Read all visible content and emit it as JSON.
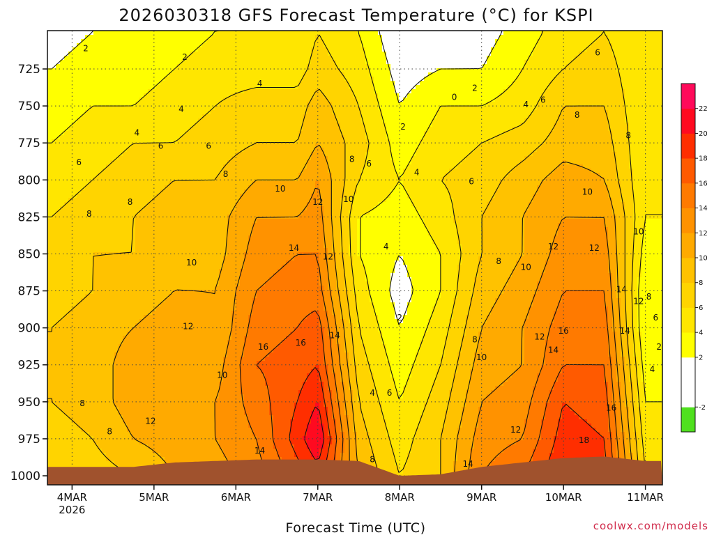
{
  "chart_data": {
    "type": "heatmap",
    "title": "2026030318 GFS Forecast Temperature (°C) for KSPI",
    "xlabel": "Forecast Time (UTC)",
    "ylabel": "",
    "credit": "coolwx.com/models",
    "y_ticks": [
      725,
      750,
      775,
      800,
      825,
      850,
      875,
      900,
      925,
      950,
      975,
      1000
    ],
    "ylim": [
      1000,
      700
    ],
    "x_ticks": [
      {
        "label": "4MAR",
        "sublabel": "2026",
        "hours": 6
      },
      {
        "label": "5MAR",
        "sublabel": "",
        "hours": 30
      },
      {
        "label": "6MAR",
        "sublabel": "",
        "hours": 54
      },
      {
        "label": "7MAR",
        "sublabel": "",
        "hours": 78
      },
      {
        "label": "8MAR",
        "sublabel": "",
        "hours": 102
      },
      {
        "label": "9MAR",
        "sublabel": "",
        "hours": 126
      },
      {
        "label": "10MAR",
        "sublabel": "",
        "hours": 150
      },
      {
        "label": "11MAR",
        "sublabel": "",
        "hours": 174
      }
    ],
    "xlim": [
      0,
      180
    ],
    "colorbar": {
      "labels": [
        "-2",
        "2",
        "4",
        "6",
        "8",
        "10",
        "12",
        "14",
        "16",
        "18",
        "20",
        "22"
      ],
      "levels": [
        -4,
        -2,
        0,
        2,
        4,
        6,
        8,
        10,
        12,
        14,
        16,
        18,
        20,
        22,
        24
      ],
      "colors": [
        "#4fe01e",
        "#ffffff",
        "#ffffff",
        "#ffff00",
        "#ffe600",
        "#ffd400",
        "#ffc200",
        "#ffaa00",
        "#ff9200",
        "#ff7a00",
        "#ff5a00",
        "#ff2e00",
        "#ff0a20",
        "#ff0a5a"
      ]
    },
    "profiles": [
      {
        "hours": 0,
        "surface_hpa": 994,
        "levels": [
          1000,
          975,
          950,
          925,
          900,
          875,
          850,
          825,
          800,
          775,
          750,
          725,
          700
        ],
        "temps": [
          6,
          7,
          8,
          8,
          8,
          7,
          7,
          6,
          5,
          4,
          3,
          2,
          1
        ]
      },
      {
        "hours": 12,
        "surface_hpa": 994,
        "levels": [
          1000,
          975,
          950,
          925,
          900,
          875,
          850,
          825,
          800,
          775,
          750,
          725,
          700
        ],
        "temps": [
          7,
          8,
          9,
          9,
          9,
          8,
          8,
          7,
          6,
          5,
          4,
          3,
          2
        ]
      },
      {
        "hours": 24,
        "surface_hpa": 994,
        "levels": [
          1000,
          975,
          950,
          925,
          900,
          875,
          850,
          825,
          800,
          775,
          750,
          725,
          700
        ],
        "temps": [
          8,
          10,
          11,
          11,
          10,
          9,
          8,
          8,
          7,
          6,
          4,
          3,
          2
        ]
      },
      {
        "hours": 36,
        "surface_hpa": 991,
        "levels": [
          1000,
          975,
          950,
          925,
          900,
          875,
          850,
          825,
          800,
          775,
          750,
          725,
          700
        ],
        "temps": [
          10,
          11,
          12,
          12,
          11,
          10,
          10,
          9,
          8,
          6,
          5,
          4,
          3
        ]
      },
      {
        "hours": 48,
        "surface_hpa": 990,
        "levels": [
          1000,
          975,
          950,
          925,
          900,
          875,
          850,
          825,
          800,
          775,
          750,
          725,
          700
        ],
        "temps": [
          11,
          12,
          12,
          11,
          10,
          10,
          9,
          9,
          8,
          7,
          6,
          5,
          4
        ]
      },
      {
        "hours": 60,
        "surface_hpa": 989,
        "levels": [
          1000,
          975,
          950,
          925,
          900,
          875,
          850,
          825,
          800,
          775,
          750,
          725,
          700
        ],
        "temps": [
          13,
          14,
          15,
          16,
          15,
          14,
          13,
          12,
          10,
          8,
          7,
          5,
          4
        ]
      },
      {
        "hours": 72,
        "surface_hpa": 989,
        "levels": [
          1000,
          975,
          950,
          925,
          900,
          875,
          850,
          825,
          800,
          775,
          750,
          725,
          700
        ],
        "temps": [
          17,
          19,
          18,
          17,
          16,
          15,
          14,
          12,
          10,
          8,
          7,
          5,
          4
        ]
      },
      {
        "hours": 78,
        "surface_hpa": 989,
        "levels": [
          1000,
          975,
          950,
          925,
          900,
          875,
          850,
          825,
          800,
          775,
          750,
          725,
          700
        ],
        "temps": [
          19,
          22,
          20,
          18,
          17,
          15,
          14,
          13,
          12,
          10,
          9,
          7,
          6
        ]
      },
      {
        "hours": 90,
        "surface_hpa": 990,
        "levels": [
          1000,
          975,
          950,
          925,
          900,
          875,
          850,
          825,
          800,
          775,
          750,
          725,
          700
        ],
        "temps": [
          10,
          9,
          8,
          7,
          6,
          5,
          4,
          4,
          6,
          7,
          6,
          5,
          4
        ]
      },
      {
        "hours": 102,
        "surface_hpa": 1000,
        "levels": [
          1000,
          975,
          950,
          925,
          900,
          875,
          850,
          825,
          800,
          775,
          750,
          725,
          700
        ],
        "temps": [
          6,
          5,
          4,
          3,
          2,
          1,
          2,
          3,
          4,
          3,
          2,
          1,
          0
        ]
      },
      {
        "hours": 114,
        "surface_hpa": 999,
        "levels": [
          1000,
          975,
          950,
          925,
          900,
          875,
          850,
          825,
          800,
          775,
          750,
          725,
          700
        ],
        "temps": [
          8,
          8,
          7,
          6,
          5,
          4,
          4,
          5,
          6,
          5,
          4,
          2,
          0
        ]
      },
      {
        "hours": 126,
        "surface_hpa": 994,
        "levels": [
          1000,
          975,
          950,
          925,
          900,
          875,
          850,
          825,
          800,
          775,
          750,
          725,
          700
        ],
        "temps": [
          14,
          13,
          12,
          11,
          10,
          9,
          8,
          8,
          7,
          6,
          4,
          2,
          1
        ]
      },
      {
        "hours": 138,
        "surface_hpa": 991,
        "levels": [
          1000,
          975,
          950,
          925,
          900,
          875,
          850,
          825,
          800,
          775,
          750,
          725,
          700
        ],
        "temps": [
          16,
          14,
          13,
          12,
          12,
          11,
          10,
          10,
          9,
          7,
          5,
          4,
          3
        ]
      },
      {
        "hours": 150,
        "surface_hpa": 988,
        "levels": [
          1000,
          975,
          950,
          925,
          900,
          875,
          850,
          825,
          800,
          775,
          750,
          725,
          700
        ],
        "temps": [
          20,
          19,
          18,
          16,
          15,
          14,
          13,
          12,
          11,
          9,
          8,
          6,
          5
        ]
      },
      {
        "hours": 162,
        "surface_hpa": 987,
        "levels": [
          1000,
          975,
          950,
          925,
          900,
          875,
          850,
          825,
          800,
          775,
          750,
          725,
          700
        ],
        "temps": [
          19,
          18,
          17,
          16,
          15,
          14,
          13,
          12,
          10,
          9,
          8,
          7,
          6
        ]
      },
      {
        "hours": 174,
        "surface_hpa": 990,
        "levels": [
          1000,
          975,
          950,
          925,
          900,
          875,
          850,
          825,
          800,
          775,
          750,
          725,
          700
        ],
        "temps": [
          6,
          5,
          4,
          3,
          2,
          2,
          3,
          4,
          4,
          4,
          4,
          4,
          4
        ]
      }
    ],
    "contour_labels": [
      {
        "text": "2",
        "hours": 10,
        "hpa": 711
      },
      {
        "text": "2",
        "hours": 39,
        "hpa": 717
      },
      {
        "text": "4",
        "hours": 61,
        "hpa": 735
      },
      {
        "text": "4",
        "hours": 38,
        "hpa": 752
      },
      {
        "text": "4",
        "hours": 25,
        "hpa": 768
      },
      {
        "text": "6",
        "hours": 8,
        "hpa": 788
      },
      {
        "text": "6",
        "hours": 32,
        "hpa": 777
      },
      {
        "text": "6",
        "hours": 46,
        "hpa": 777
      },
      {
        "text": "8",
        "hours": 11,
        "hpa": 823
      },
      {
        "text": "8",
        "hours": 23,
        "hpa": 815
      },
      {
        "text": "8",
        "hours": 51,
        "hpa": 796
      },
      {
        "text": "10",
        "hours": 41,
        "hpa": 856
      },
      {
        "text": "10",
        "hours": 67,
        "hpa": 806
      },
      {
        "text": "12",
        "hours": 40,
        "hpa": 899
      },
      {
        "text": "12",
        "hours": 78,
        "hpa": 815
      },
      {
        "text": "14",
        "hours": 71,
        "hpa": 846
      },
      {
        "text": "12",
        "hours": 81,
        "hpa": 852
      },
      {
        "text": "8",
        "hours": 88,
        "hpa": 786
      },
      {
        "text": "10",
        "hours": 87,
        "hpa": 813
      },
      {
        "text": "6",
        "hours": 93,
        "hpa": 789
      },
      {
        "text": "4",
        "hours": 98,
        "hpa": 845
      },
      {
        "text": "2",
        "hours": 102,
        "hpa": 893
      },
      {
        "text": "4",
        "hours": 107,
        "hpa": 795
      },
      {
        "text": "2",
        "hours": 103,
        "hpa": 764
      },
      {
        "text": "16",
        "hours": 62,
        "hpa": 913
      },
      {
        "text": "16",
        "hours": 73,
        "hpa": 910
      },
      {
        "text": "14",
        "hours": 83,
        "hpa": 905
      },
      {
        "text": "10",
        "hours": 50,
        "hpa": 932
      },
      {
        "text": "12",
        "hours": 29,
        "hpa": 963
      },
      {
        "text": "8",
        "hours": 9,
        "hpa": 951
      },
      {
        "text": "8",
        "hours": 17,
        "hpa": 970
      },
      {
        "text": "14",
        "hours": 61,
        "hpa": 983
      },
      {
        "text": "4",
        "hours": 94,
        "hpa": 944
      },
      {
        "text": "6",
        "hours": 99,
        "hpa": 944
      },
      {
        "text": "8",
        "hours": 94,
        "hpa": 989
      },
      {
        "text": "0",
        "hours": 118,
        "hpa": 744
      },
      {
        "text": "2",
        "hours": 124,
        "hpa": 738
      },
      {
        "text": "4",
        "hours": 139,
        "hpa": 749
      },
      {
        "text": "6",
        "hours": 144,
        "hpa": 746
      },
      {
        "text": "8",
        "hours": 154,
        "hpa": 756
      },
      {
        "text": "6",
        "hours": 160,
        "hpa": 714
      },
      {
        "text": "8",
        "hours": 169,
        "hpa": 770
      },
      {
        "text": "4",
        "hours": 179,
        "hpa": 746
      },
      {
        "text": "6",
        "hours": 123,
        "hpa": 801
      },
      {
        "text": "10",
        "hours": 157,
        "hpa": 808
      },
      {
        "text": "10",
        "hours": 172,
        "hpa": 835
      },
      {
        "text": "12",
        "hours": 147,
        "hpa": 845
      },
      {
        "text": "12",
        "hours": 159,
        "hpa": 846
      },
      {
        "text": "8",
        "hours": 131,
        "hpa": 855
      },
      {
        "text": "10",
        "hours": 139,
        "hpa": 859
      },
      {
        "text": "14",
        "hours": 167,
        "hpa": 874
      },
      {
        "text": "12",
        "hours": 172,
        "hpa": 882
      },
      {
        "text": "8",
        "hours": 175,
        "hpa": 879
      },
      {
        "text": "6",
        "hours": 177,
        "hpa": 893
      },
      {
        "text": "8",
        "hours": 124,
        "hpa": 908
      },
      {
        "text": "10",
        "hours": 126,
        "hpa": 920
      },
      {
        "text": "12",
        "hours": 143,
        "hpa": 906
      },
      {
        "text": "14",
        "hours": 147,
        "hpa": 915
      },
      {
        "text": "16",
        "hours": 150,
        "hpa": 902
      },
      {
        "text": "14",
        "hours": 168,
        "hpa": 902
      },
      {
        "text": "2",
        "hours": 178,
        "hpa": 913
      },
      {
        "text": "4",
        "hours": 176,
        "hpa": 928
      },
      {
        "text": "16",
        "hours": 164,
        "hpa": 954
      },
      {
        "text": "18",
        "hours": 156,
        "hpa": 976
      },
      {
        "text": "12",
        "hours": 136,
        "hpa": 969
      },
      {
        "text": "14",
        "hours": 122,
        "hpa": 992
      }
    ]
  }
}
